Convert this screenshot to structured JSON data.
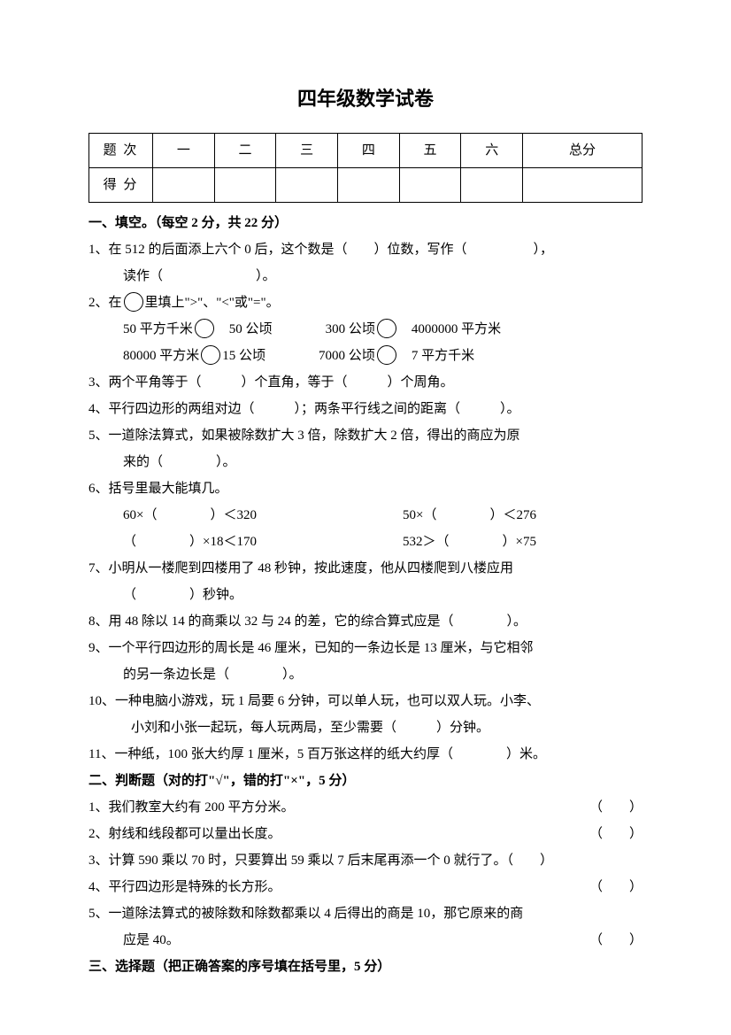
{
  "title": "四年级数学试卷",
  "table": {
    "row1": [
      "题 次",
      "一",
      "二",
      "三",
      "四",
      "五",
      "六",
      "总分"
    ],
    "row2_label": "得 分"
  },
  "s1": {
    "head": "一、填空。（每空 2 分，共 22 分）",
    "q1a": "1、在 512 的后面添上六个 0 后，这个数是（　　）位数，写作（　　　　　），",
    "q1b": "读作（　　　　　　　）。",
    "q2a": "2、在",
    "q2a2": "里填上\">\"、\"<\"或\"=\"。",
    "q2b1": "50 平方千米",
    "q2b2": "50 公顷",
    "q2b3": "300 公顷",
    "q2b4": "4000000 平方米",
    "q2c1": "80000 平方米",
    "q2c2": "15 公顷",
    "q2c3": "7000 公顷",
    "q2c4": "7 平方千米",
    "q3": "3、两个平角等于（　　　）个直角，等于（　　　）个周角。",
    "q4": "4、平行四边形的两组对边（　　　）；两条平行线之间的距离（　　　）。",
    "q5a": "5、一道除法算式，如果被除数扩大 3 倍，除数扩大 2 倍，得出的商应为原",
    "q5b": "来的（　　　　）。",
    "q6a": "6、括号里最大能填几。",
    "q6b1": "60×（　　　　）＜320",
    "q6b2": "50×（　　　　）＜276",
    "q6c1": "（　　　　）×18＜170",
    "q6c2": "532＞（　　　　）×75",
    "q7a": "7、小明从一楼爬到四楼用了 48 秒钟，按此速度，他从四楼爬到八楼应用",
    "q7b": "（　　　　）秒钟。",
    "q8": "8、用 48 除以 14 的商乘以 32 与 24 的差，它的综合算式应是（　　　　）。",
    "q9a": "9、一个平行四边形的周长是 46 厘米，已知的一条边长是 13 厘米，与它相邻",
    "q9b": "的另一条边长是（　　　　）。",
    "q10a": "10、一种电脑小游戏，玩 1 局要 6 分钟，可以单人玩，也可以双人玩。小李、",
    "q10b": "小刘和小张一起玩，每人玩两局，至少需要（　　　）分钟。",
    "q11": "11、一种纸，100 张大约厚 1 厘米，5 百万张这样的纸大约厚（　　　　）米。"
  },
  "s2": {
    "head": "二、判断题（对的打\"√\"，错的打\"×\"，5 分）",
    "q1": "1、我们教室大约有 200 平方分米。",
    "q2": "2、射线和线段都可以量出长度。",
    "q3": "3、计算 590 乘以 70 时，只要算出 59 乘以 7 后末尾再添一个 0 就行了。（　　）",
    "q4": "4、平行四边形是特殊的长方形。",
    "q5a": "5、一道除法算式的被除数和除数都乘以 4 后得出的商是 10，那它原来的商",
    "q5b": "应是 40。",
    "paren": "（　　）"
  },
  "s3": {
    "head": "三、选择题（把正确答案的序号填在括号里，5 分）"
  }
}
